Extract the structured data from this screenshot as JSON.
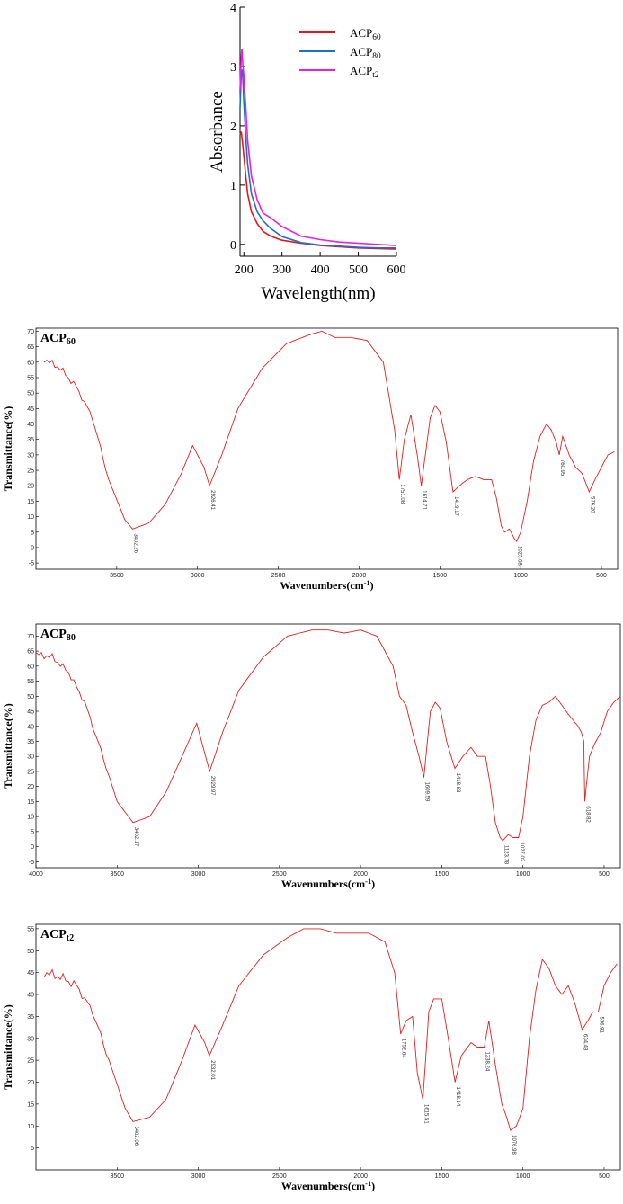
{
  "chart_data": [
    {
      "type": "line",
      "xlabel": "Wavelength(nm)",
      "ylabel": "Absorbance",
      "xlim": [
        190,
        600
      ],
      "ylim": [
        -0.2,
        4
      ],
      "xticks": [
        "200",
        "300",
        "400",
        "500",
        "600"
      ],
      "yticks": [
        "0",
        "1",
        "2",
        "3",
        "4"
      ],
      "legend": "top-right",
      "series": [
        {
          "name": "ACP60",
          "color": "#e8141c",
          "x": [
            190,
            193,
            196,
            200,
            205,
            210,
            220,
            235,
            250,
            270,
            300,
            350,
            400,
            450,
            500,
            550,
            600
          ],
          "y": [
            1.85,
            1.9,
            1.75,
            1.5,
            1.15,
            0.85,
            0.55,
            0.35,
            0.22,
            0.14,
            0.07,
            0.02,
            -0.02,
            -0.04,
            -0.06,
            -0.07,
            -0.08
          ]
        },
        {
          "name": "ACP80",
          "color": "#1f6fc4",
          "x": [
            190,
            193,
            196,
            198,
            200,
            205,
            210,
            220,
            235,
            250,
            270,
            300,
            350,
            400,
            450,
            500,
            550,
            600
          ],
          "y": [
            2.3,
            2.85,
            2.95,
            2.7,
            2.4,
            1.8,
            1.35,
            0.85,
            0.55,
            0.4,
            0.27,
            0.13,
            0.03,
            -0.01,
            -0.03,
            -0.05,
            -0.06,
            -0.06
          ]
        },
        {
          "name": "ACPt2",
          "color": "#e81ee0",
          "x": [
            190,
            193,
            195,
            197,
            200,
            205,
            210,
            220,
            235,
            250,
            270,
            300,
            350,
            400,
            450,
            500,
            550,
            600
          ],
          "y": [
            2.6,
            3.15,
            3.3,
            3.05,
            2.85,
            2.3,
            1.75,
            1.15,
            0.75,
            0.53,
            0.45,
            0.3,
            0.14,
            0.08,
            0.04,
            0.02,
            0.0,
            -0.02
          ]
        }
      ]
    },
    {
      "type": "line",
      "title": "ACP60",
      "xlabel": "Wavenumbers(cm-1)",
      "ylabel": "Transmittance(%)",
      "xlim": [
        4000,
        400
      ],
      "ylim": [
        -7,
        71
      ],
      "xticks": [
        3500,
        3000,
        2500,
        2000,
        1500,
        1000,
        500
      ],
      "yticks": [
        -5,
        0,
        5,
        10,
        15,
        20,
        25,
        30,
        35,
        40,
        45,
        50,
        55,
        60,
        65,
        70
      ],
      "peak_labels": [
        {
          "x": 3402,
          "y": 6,
          "label": "3402.26"
        },
        {
          "x": 2926,
          "y": 20,
          "label": "2926.41"
        },
        {
          "x": 1751,
          "y": 22,
          "label": "1751.08"
        },
        {
          "x": 1615,
          "y": 20,
          "label": "1614.71"
        },
        {
          "x": 1419,
          "y": 18,
          "label": "1419.17"
        },
        {
          "x": 1025,
          "y": 2,
          "label": "1025.08"
        },
        {
          "x": 761,
          "y": 30,
          "label": "760.95"
        },
        {
          "x": 576,
          "y": 18,
          "label": "576.20"
        }
      ],
      "series": [
        {
          "color": "#e02020",
          "x": [
            3950,
            3850,
            3750,
            3650,
            3550,
            3450,
            3402,
            3300,
            3200,
            3100,
            3030,
            2960,
            2926,
            2850,
            2750,
            2600,
            2450,
            2300,
            2230,
            2150,
            2050,
            1950,
            1850,
            1780,
            1751,
            1720,
            1680,
            1640,
            1615,
            1560,
            1530,
            1500,
            1460,
            1419,
            1380,
            1330,
            1280,
            1230,
            1180,
            1150,
            1120,
            1100,
            1070,
            1040,
            1025,
            1000,
            960,
            920,
            880,
            840,
            810,
            780,
            761,
            740,
            700,
            660,
            620,
            576,
            540,
            500,
            460,
            420
          ],
          "y": [
            61,
            58,
            52,
            42,
            22,
            9,
            6,
            8,
            14,
            24,
            33,
            26,
            20,
            30,
            45,
            58,
            66,
            69,
            70,
            68,
            68,
            67,
            60,
            38,
            22,
            35,
            43,
            30,
            20,
            42,
            46,
            44,
            34,
            18,
            20,
            22,
            23,
            22,
            22,
            16,
            7,
            5,
            6,
            3,
            2,
            5,
            15,
            28,
            36,
            40,
            38,
            34,
            30,
            36,
            30,
            26,
            24,
            18,
            22,
            26,
            30,
            31
          ]
        }
      ]
    },
    {
      "type": "line",
      "title": "ACP80",
      "xlabel": "Wavenumbers(cm-1)",
      "ylabel": "Transmittance(%)",
      "xlim": [
        4000,
        400
      ],
      "ylim": [
        -7,
        74
      ],
      "xticks": [
        4000,
        3500,
        3000,
        2500,
        2000,
        1500,
        1000,
        500
      ],
      "yticks": [
        -5,
        0,
        5,
        10,
        15,
        20,
        25,
        30,
        35,
        40,
        45,
        50,
        55,
        60,
        65,
        70
      ],
      "peak_labels": [
        {
          "x": 3402,
          "y": 8,
          "label": "3402.17"
        },
        {
          "x": 2930,
          "y": 25,
          "label": "2929.97"
        },
        {
          "x": 1610,
          "y": 23,
          "label": "1609.59"
        },
        {
          "x": 1419,
          "y": 26,
          "label": "1418.83"
        },
        {
          "x": 1124,
          "y": 2,
          "label": "1123.78"
        },
        {
          "x": 1027,
          "y": 3,
          "label": "1027.02"
        },
        {
          "x": 619,
          "y": 15,
          "label": "618.82"
        }
      ],
      "series": [
        {
          "color": "#e02020",
          "x": [
            4000,
            3900,
            3800,
            3700,
            3600,
            3500,
            3402,
            3300,
            3200,
            3100,
            3010,
            2960,
            2930,
            2850,
            2750,
            2600,
            2450,
            2300,
            2200,
            2100,
            2000,
            1900,
            1800,
            1760,
            1720,
            1680,
            1640,
            1610,
            1570,
            1540,
            1510,
            1470,
            1419,
            1370,
            1320,
            1280,
            1230,
            1200,
            1170,
            1140,
            1124,
            1090,
            1060,
            1027,
            1000,
            960,
            920,
            880,
            840,
            800,
            760,
            720,
            690,
            660,
            640,
            625,
            619,
            610,
            590,
            560,
            520,
            480,
            440,
            400
          ],
          "y": [
            64,
            63,
            58,
            48,
            32,
            15,
            8,
            10,
            18,
            30,
            41,
            31,
            25,
            38,
            52,
            63,
            70,
            72,
            72,
            71,
            72,
            70,
            60,
            50,
            47,
            38,
            30,
            23,
            45,
            48,
            46,
            35,
            26,
            30,
            33,
            30,
            30,
            20,
            8,
            3,
            2,
            4,
            3,
            3,
            10,
            30,
            42,
            47,
            48,
            50,
            47,
            44,
            42,
            40,
            38,
            35,
            15,
            20,
            30,
            34,
            38,
            45,
            48,
            50
          ]
        }
      ]
    },
    {
      "type": "line",
      "title": "ACPt2",
      "xlabel": "Wavenumbers(cm-1)",
      "ylabel": "Transmittance(%)",
      "xlim": [
        4000,
        400
      ],
      "ylim": [
        0,
        56
      ],
      "xticks": [
        3500,
        3000,
        2500,
        2000,
        1500,
        1000,
        500
      ],
      "yticks": [
        5,
        10,
        15,
        20,
        25,
        30,
        35,
        40,
        45,
        50,
        55
      ],
      "peak_labels": [
        {
          "x": 3402,
          "y": 11,
          "label": "3402.06"
        },
        {
          "x": 2932,
          "y": 26,
          "label": "2932.01"
        },
        {
          "x": 1753,
          "y": 31,
          "label": "1752.64"
        },
        {
          "x": 1616,
          "y": 16,
          "label": "1615.51"
        },
        {
          "x": 1418,
          "y": 20,
          "label": "1418.14"
        },
        {
          "x": 1238,
          "y": 28,
          "label": "1238.24"
        },
        {
          "x": 1077,
          "y": 9,
          "label": "1076.98"
        },
        {
          "x": 635,
          "y": 32,
          "label": "634.48"
        },
        {
          "x": 536,
          "y": 36,
          "label": "536.91"
        }
      ],
      "series": [
        {
          "color": "#e02020",
          "x": [
            3950,
            3850,
            3750,
            3650,
            3550,
            3450,
            3402,
            3300,
            3200,
            3100,
            3020,
            2960,
            2932,
            2850,
            2750,
            2600,
            2450,
            2350,
            2250,
            2150,
            2050,
            1950,
            1850,
            1790,
            1753,
            1720,
            1680,
            1650,
            1616,
            1580,
            1550,
            1500,
            1460,
            1418,
            1380,
            1320,
            1280,
            1250,
            1238,
            1210,
            1170,
            1130,
            1100,
            1077,
            1040,
            1000,
            960,
            920,
            880,
            840,
            800,
            760,
            720,
            680,
            650,
            635,
            600,
            570,
            536,
            500,
            460,
            420
          ],
          "y": [
            45,
            44,
            42,
            36,
            25,
            14,
            11,
            12,
            16,
            25,
            33,
            29,
            26,
            33,
            42,
            49,
            53,
            55,
            55,
            54,
            54,
            54,
            52,
            45,
            31,
            34,
            35,
            22,
            16,
            36,
            39,
            39,
            30,
            20,
            26,
            29,
            28,
            28,
            28,
            34,
            24,
            15,
            12,
            9,
            10,
            14,
            30,
            41,
            48,
            46,
            42,
            40,
            42,
            38,
            34,
            32,
            34,
            36,
            36,
            42,
            45,
            47
          ]
        }
      ]
    }
  ]
}
